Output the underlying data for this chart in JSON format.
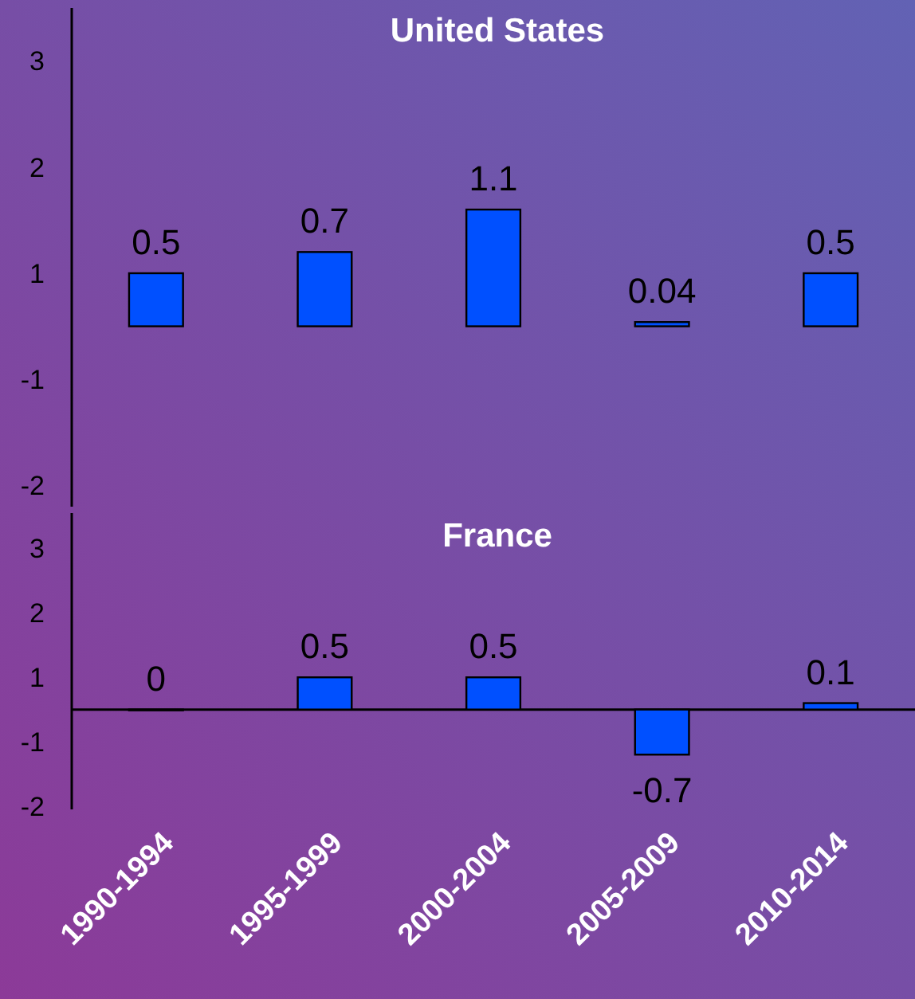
{
  "chart_data": [
    {
      "type": "bar",
      "title": "United States",
      "categories": [
        null,
        null,
        null,
        null,
        null
      ],
      "values": [
        0.5,
        0.7,
        1.1,
        0.04,
        0.5
      ],
      "color": "#0050ff",
      "data_labels": true,
      "ylim": [
        -1.7,
        3.0
      ],
      "yticks": [
        {
          "value": 2.5,
          "label": "3"
        },
        {
          "value": 1.5,
          "label": "2"
        },
        {
          "value": 0.5,
          "label": "1"
        },
        {
          "value": -0.5,
          "label": "-1"
        },
        {
          "value": -1.5,
          "label": "-2"
        }
      ],
      "tick_labels": "y",
      "grid": false
    },
    {
      "type": "bar",
      "title": "France",
      "categories": [
        "1990-1994",
        "1995-1999",
        "2000-2004",
        "2005-2009",
        "2010-2014"
      ],
      "values": [
        0,
        0.5,
        0.5,
        -0.7,
        0.1
      ],
      "color": "#0050ff",
      "data_labels": true,
      "ylim": [
        -1.55,
        3.05
      ],
      "yticks": [
        {
          "value": 2.5,
          "label": "3"
        },
        {
          "value": 1.5,
          "label": "2"
        },
        {
          "value": 0.5,
          "label": "1"
        },
        {
          "value": -0.5,
          "label": "-1"
        },
        {
          "value": -1.5,
          "label": "-2"
        }
      ],
      "grid": false
    }
  ]
}
